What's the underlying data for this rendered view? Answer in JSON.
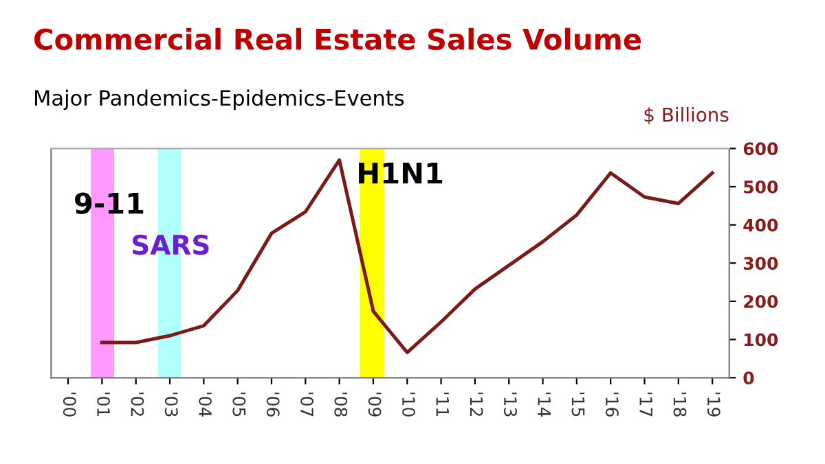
{
  "chart_data": {
    "type": "line",
    "title": "Commercial Real Estate Sales Volume",
    "subtitle": "Major Pandemics-Epidemics-Events",
    "ylabel": "$ Billions",
    "series": [
      {
        "color": "#7a1a1a",
        "x": [
          2001,
          2002,
          2003,
          2004,
          2005,
          2006,
          2007,
          2008,
          2009,
          2010,
          2011,
          2012,
          2013,
          2014,
          2015,
          2016,
          2017,
          2018,
          2019
        ],
        "values": [
          92,
          92,
          110,
          136,
          228,
          378,
          434,
          570,
          174,
          66,
          146,
          232,
          294,
          356,
          426,
          536,
          473,
          456,
          536
        ]
      }
    ],
    "xlim": [
      1999.5,
      2019.5
    ],
    "xticks": [
      {
        "value": 2000,
        "label": "'00"
      },
      {
        "value": 2001,
        "label": "'01"
      },
      {
        "value": 2002,
        "label": "'02"
      },
      {
        "value": 2003,
        "label": "'03"
      },
      {
        "value": 2004,
        "label": "'04"
      },
      {
        "value": 2005,
        "label": "'05"
      },
      {
        "value": 2006,
        "label": "'06"
      },
      {
        "value": 2007,
        "label": "'07"
      },
      {
        "value": 2008,
        "label": "'08"
      },
      {
        "value": 2009,
        "label": "'09"
      },
      {
        "value": 2010,
        "label": "'10"
      },
      {
        "value": 2011,
        "label": "'11"
      },
      {
        "value": 2012,
        "label": "'12"
      },
      {
        "value": 2013,
        "label": "'13"
      },
      {
        "value": 2014,
        "label": "'14"
      },
      {
        "value": 2015,
        "label": "'15"
      },
      {
        "value": 2016,
        "label": "'16"
      },
      {
        "value": 2017,
        "label": "'17"
      },
      {
        "value": 2018,
        "label": "'18"
      },
      {
        "value": 2019,
        "label": "'19"
      }
    ],
    "ylim": [
      0,
      600
    ],
    "yticks": [
      0,
      100,
      200,
      300,
      400,
      500,
      600
    ],
    "bands": [
      {
        "axis": "x",
        "from": 2000.67,
        "to": 2001.36,
        "label": "9-11",
        "color": "#ff99ff"
      },
      {
        "axis": "x",
        "from": 2002.65,
        "to": 2003.33,
        "label": "SARS",
        "color": "#b3ffff"
      },
      {
        "axis": "x",
        "from": 2008.6,
        "to": 2009.32,
        "label": "H1N1",
        "color": "#ffff00"
      }
    ],
    "grid": false,
    "legend": false,
    "marker": "none",
    "line_style": "solid"
  }
}
